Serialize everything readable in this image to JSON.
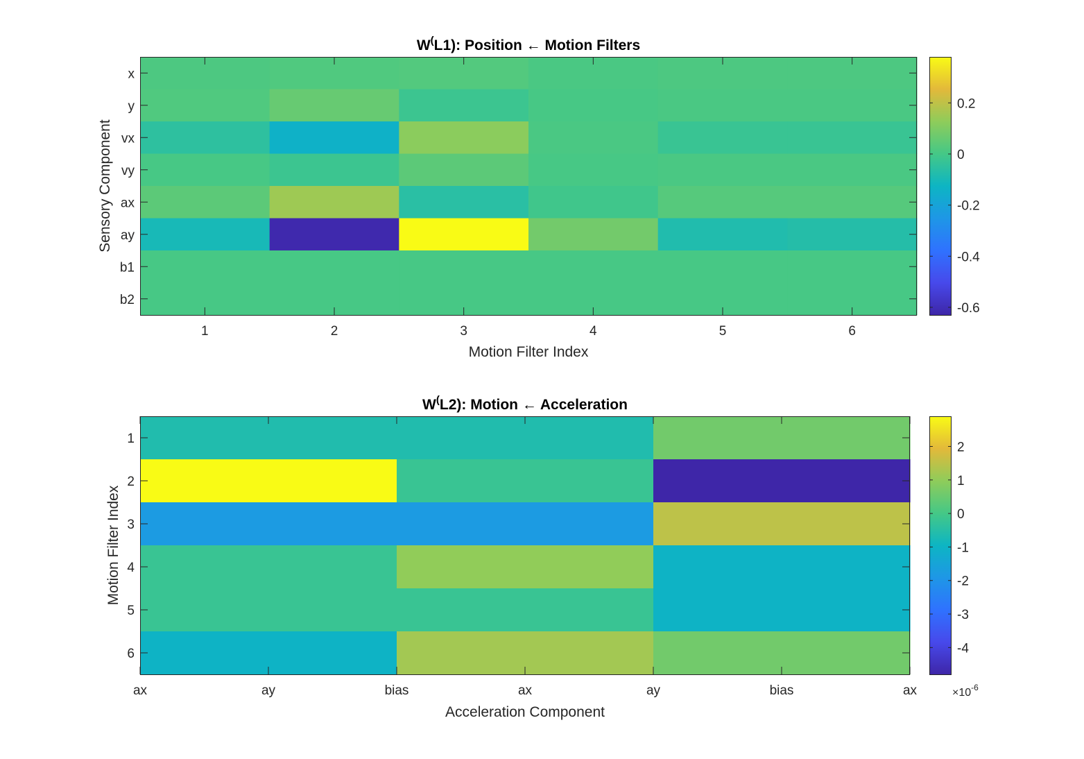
{
  "chart_data": [
    {
      "type": "heatmap",
      "title_main": "W",
      "title_sup": "(",
      "title_rest": "L1): Position ← Motion Filters",
      "xlabel": "Motion Filter Index",
      "ylabel": "Sensory Component",
      "x_ticks": [
        "1",
        "2",
        "3",
        "4",
        "5",
        "6"
      ],
      "y_ticks": [
        "x",
        "y",
        "vx",
        "vy",
        "ax",
        "ay",
        "b1",
        "b2"
      ],
      "colormap": "parula",
      "clim": [
        -0.63,
        0.38
      ],
      "colorbar_ticks": [
        0.2,
        0,
        -0.2,
        -0.4,
        -0.6
      ],
      "colorbar_tick_labels": [
        "0.2",
        "0",
        "-0.2",
        "-0.4",
        "-0.6"
      ],
      "values": [
        [
          0.015,
          0.02,
          0.025,
          0.01,
          0.015,
          0.015
        ],
        [
          0.02,
          0.06,
          -0.02,
          0.005,
          0.01,
          0.01
        ],
        [
          -0.05,
          -0.14,
          0.12,
          0.01,
          -0.025,
          -0.025
        ],
        [
          0.005,
          -0.02,
          0.04,
          0.005,
          0.01,
          0.01
        ],
        [
          0.04,
          0.15,
          -0.06,
          -0.01,
          0.03,
          0.03
        ],
        [
          -0.1,
          -0.62,
          0.38,
          0.08,
          -0.08,
          -0.07
        ],
        [
          0.005,
          0.005,
          0.005,
          0.005,
          0.005,
          0.005
        ],
        [
          0.005,
          0.005,
          0.005,
          0.005,
          0.005,
          0.005
        ]
      ]
    },
    {
      "type": "heatmap",
      "title_main": "W",
      "title_sup": "(",
      "title_rest": "L2): Motion ← Acceleration",
      "xlabel": "Acceleration Component",
      "ylabel": "Motion Filter Index",
      "x_ticks": [
        "ax",
        "ay",
        "bias",
        "ax",
        "ay",
        "bias",
        "ax"
      ],
      "y_ticks": [
        "1",
        "2",
        "3",
        "4",
        "5",
        "6"
      ],
      "colormap": "parula",
      "clim": [
        -4.8,
        2.9
      ],
      "colorbar_ticks": [
        2,
        1,
        0,
        -1,
        -2,
        -3,
        -4
      ],
      "colorbar_tick_labels": [
        "2",
        "1",
        "0",
        "-1",
        "-2",
        "-3",
        "-4"
      ],
      "colorbar_exponent_base": "×10",
      "colorbar_exponent": "-6",
      "values": [
        [
          -0.6,
          -0.6,
          0.6
        ],
        [
          2.9,
          -0.2,
          -4.8
        ],
        [
          -1.8,
          -1.8,
          1.5
        ],
        [
          -0.2,
          1.0,
          -1.0
        ],
        [
          -0.2,
          -0.2,
          -1.0
        ],
        [
          -1.0,
          1.2,
          0.6
        ]
      ]
    }
  ]
}
